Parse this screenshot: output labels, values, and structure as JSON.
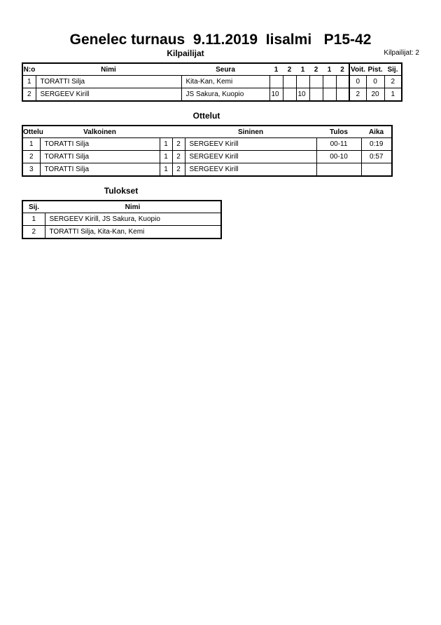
{
  "title": "Genelec turnaus  9.11.2019  Iisalmi   P15-42",
  "competitors": {
    "heading": "Kilpailijat",
    "count_label": "Kilpailijat: 2",
    "headers": [
      "N:o",
      "Nimi",
      "Seura",
      "1",
      "2",
      "1",
      "2",
      "1",
      "2",
      "Voit.",
      "Pist.",
      "Sij."
    ],
    "rows": [
      {
        "no": "1",
        "name": "TORATTI Silja",
        "club": "Kita-Kan, Kemi",
        "scores": [
          "",
          "",
          "",
          "",
          "",
          ""
        ],
        "wins": "0",
        "points": "0",
        "place": "2"
      },
      {
        "no": "2",
        "name": "SERGEEV Kirill",
        "club": "JS Sakura, Kuopio",
        "scores": [
          "10",
          "",
          "10",
          "",
          "",
          ""
        ],
        "wins": "2",
        "points": "20",
        "place": "1"
      }
    ]
  },
  "matches": {
    "heading": "Ottelut",
    "headers": [
      "Ottelu",
      "Valkoinen",
      "Sininen",
      "Tulos",
      "Aika"
    ],
    "rows": [
      {
        "no": "1",
        "white": "TORATTI Silja",
        "w": "1",
        "b": "2",
        "blue": "SERGEEV Kirill",
        "result": "00-11",
        "time": "0:19"
      },
      {
        "no": "2",
        "white": "TORATTI Silja",
        "w": "1",
        "b": "2",
        "blue": "SERGEEV Kirill",
        "result": "00-10",
        "time": "0:57"
      },
      {
        "no": "3",
        "white": "TORATTI Silja",
        "w": "1",
        "b": "2",
        "blue": "SERGEEV Kirill",
        "result": "",
        "time": ""
      }
    ]
  },
  "results": {
    "heading": "Tulokset",
    "headers": [
      "Sij.",
      "Nimi"
    ],
    "rows": [
      {
        "place": "1",
        "name": "SERGEEV Kirill, JS Sakura, Kuopio"
      },
      {
        "place": "2",
        "name": "TORATTI Silja, Kita-Kan, Kemi"
      }
    ]
  }
}
